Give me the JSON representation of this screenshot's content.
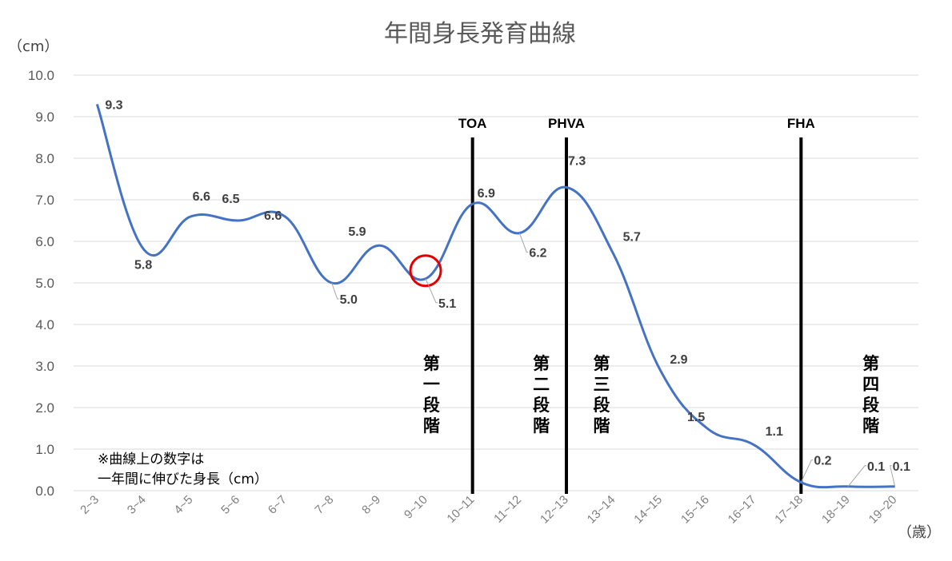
{
  "chart_data": {
    "type": "line",
    "title": "年間身長発育曲線",
    "ylabel": "（cm）",
    "xlabel": "（歳）",
    "ylim": [
      0,
      10
    ],
    "yticks": [
      "0.0",
      "1.0",
      "2.0",
      "3.0",
      "4.0",
      "5.0",
      "6.0",
      "7.0",
      "8.0",
      "9.0",
      "10.0"
    ],
    "grid": true,
    "categories": [
      "2~3",
      "3~4",
      "4~5",
      "5~6",
      "6~7",
      "7~8",
      "8~9",
      "9~10",
      "10~11",
      "11~12",
      "12~13",
      "13~14",
      "14~15",
      "15~16",
      "16~17",
      "17~18",
      "18~19",
      "19~20"
    ],
    "series": [
      {
        "values": [
          9.3,
          5.8,
          6.6,
          6.5,
          6.6,
          5.0,
          5.9,
          5.1,
          6.9,
          6.2,
          7.3,
          5.7,
          2.9,
          1.5,
          1.1,
          0.2,
          0.1,
          0.1
        ],
        "labels": [
          "9.3",
          "5.8",
          "6.6",
          "6.5",
          "6.6",
          "5.0",
          "5.9",
          "5.1",
          "6.9",
          "6.2",
          "7.3",
          "5.7",
          "2.9",
          "1.5",
          "1.1",
          "0.2",
          "0.1",
          "0.1"
        ],
        "color": "#4472c4"
      }
    ],
    "markers": [
      {
        "label": "TOA",
        "between": "10~11"
      },
      {
        "label": "PHVA",
        "between": "12~13"
      },
      {
        "label": "FHA",
        "between": "17~18"
      }
    ],
    "stages": [
      "第一段階",
      "第二段階",
      "第三段階",
      "第四段階"
    ],
    "highlight": {
      "category": "9~10",
      "color": "#e00000"
    },
    "note": [
      "※曲線上の数字は",
      "一年間に伸びた身長（cm）"
    ]
  }
}
